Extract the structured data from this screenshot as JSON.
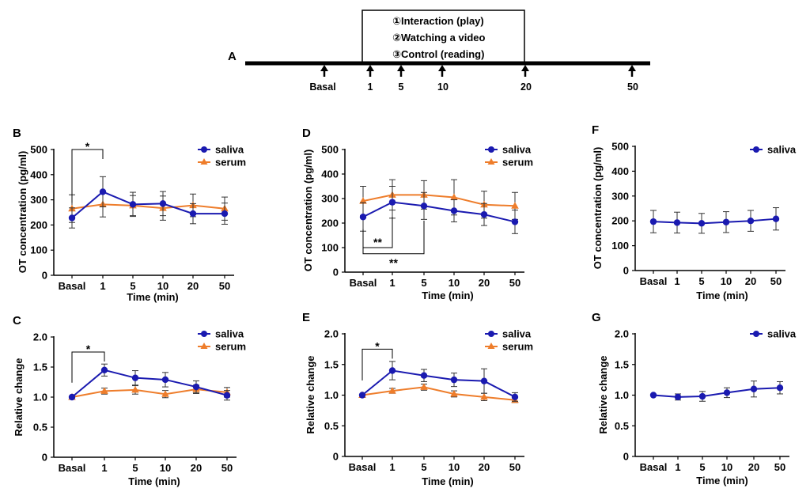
{
  "timeline": {
    "label": "A",
    "conditions": [
      "①Interaction (play)",
      "②Watching a video",
      "③Control (reading)"
    ],
    "markers": [
      "Basal",
      "1",
      "5",
      "10",
      "20",
      "50"
    ]
  },
  "colors": {
    "saliva": "#1a1ab0",
    "serum": "#ee7d2b"
  },
  "chart_data": [
    {
      "id": "B",
      "type": "line",
      "categories": [
        "Basal",
        "1",
        "5",
        "10",
        "20",
        "50"
      ],
      "xlabel": "Time (min)",
      "ylabel": "OT concentration (pg/ml)",
      "ylim": [
        0,
        500
      ],
      "yticks": [
        0,
        100,
        200,
        300,
        400,
        500
      ],
      "series": [
        {
          "name": "saliva",
          "marker": "circle",
          "values": [
            228,
            332,
            282,
            285,
            245,
            245
          ],
          "errors": [
            40,
            60,
            48,
            48,
            40,
            42
          ]
        },
        {
          "name": "serum",
          "marker": "triangle",
          "values": [
            265,
            282,
            277,
            267,
            278,
            265
          ],
          "errors": [
            55,
            50,
            40,
            48,
            45,
            46
          ]
        }
      ],
      "annotations": [
        {
          "text": "*",
          "from": 0,
          "to": 1,
          "level": 500
        }
      ]
    },
    {
      "id": "D",
      "type": "line",
      "categories": [
        "Basal",
        "1",
        "5",
        "10",
        "20",
        "50"
      ],
      "xlabel": "Time (min)",
      "ylabel": "OT concentration (pg/ml)",
      "ylim": [
        0,
        500
      ],
      "yticks": [
        0,
        100,
        200,
        300,
        400,
        500
      ],
      "series": [
        {
          "name": "saliva",
          "marker": "circle",
          "values": [
            225,
            285,
            270,
            250,
            235,
            205
          ],
          "errors": [
            58,
            65,
            55,
            45,
            45,
            48
          ]
        },
        {
          "name": "serum",
          "marker": "triangle",
          "values": [
            290,
            315,
            315,
            305,
            275,
            270
          ],
          "errors": [
            60,
            62,
            58,
            72,
            55,
            55
          ]
        }
      ],
      "annotations": [
        {
          "text": "**",
          "from": 0,
          "to": 1,
          "level": 100
        },
        {
          "text": "**",
          "from": 0,
          "to": 2,
          "level": 75
        }
      ]
    },
    {
      "id": "F",
      "type": "line",
      "categories": [
        "Basal",
        "1",
        "5",
        "10",
        "20",
        "50"
      ],
      "xlabel": "Time (min)",
      "ylabel": "OT concentration (pg/ml)",
      "ylim": [
        0,
        500
      ],
      "yticks": [
        0,
        100,
        200,
        300,
        400,
        500
      ],
      "series": [
        {
          "name": "saliva",
          "marker": "circle",
          "values": [
            197,
            193,
            190,
            195,
            200,
            208
          ],
          "errors": [
            45,
            42,
            40,
            42,
            42,
            45
          ]
        }
      ],
      "annotations": []
    },
    {
      "id": "C",
      "type": "line",
      "categories": [
        "Basal",
        "1",
        "5",
        "10",
        "20",
        "50"
      ],
      "xlabel": "Time (min)",
      "ylabel": "Relative change",
      "ylim": [
        0,
        2.0
      ],
      "yticks": [
        "0",
        "0.5",
        "1.0",
        "1.5",
        "2.0"
      ],
      "series": [
        {
          "name": "saliva",
          "marker": "circle",
          "values": [
            1.0,
            1.45,
            1.32,
            1.29,
            1.17,
            1.03
          ],
          "errors": [
            0,
            0.1,
            0.12,
            0.12,
            0.1,
            0.08
          ]
        },
        {
          "name": "serum",
          "marker": "triangle",
          "values": [
            1.0,
            1.1,
            1.12,
            1.05,
            1.13,
            1.08
          ],
          "errors": [
            0,
            0.05,
            0.07,
            0.06,
            0.07,
            0.08
          ]
        }
      ],
      "annotations": [
        {
          "text": "*",
          "from": 0,
          "to": 1,
          "level": 1.75
        }
      ]
    },
    {
      "id": "E",
      "type": "line",
      "categories": [
        "Basal",
        "1",
        "5",
        "10",
        "20",
        "50"
      ],
      "xlabel": "Time (min)",
      "ylabel": "Relative change",
      "ylim": [
        0,
        2.0
      ],
      "yticks": [
        "0",
        "0.5",
        "1.0",
        "1.5",
        "2.0"
      ],
      "series": [
        {
          "name": "saliva",
          "marker": "circle",
          "values": [
            1.0,
            1.4,
            1.32,
            1.25,
            1.23,
            0.97
          ],
          "errors": [
            0,
            0.15,
            0.1,
            0.11,
            0.2,
            0.07
          ]
        },
        {
          "name": "serum",
          "marker": "triangle",
          "values": [
            1.0,
            1.07,
            1.13,
            1.02,
            0.97,
            0.92
          ],
          "errors": [
            0,
            0.04,
            0.05,
            0.05,
            0.06,
            0.04
          ]
        }
      ],
      "annotations": [
        {
          "text": "*",
          "from": 0,
          "to": 1,
          "level": 1.75
        }
      ]
    },
    {
      "id": "G",
      "type": "line",
      "categories": [
        "Basal",
        "1",
        "5",
        "10",
        "20",
        "50"
      ],
      "xlabel": "Time (min)",
      "ylabel": "Relative change",
      "ylim": [
        0,
        2.0
      ],
      "yticks": [
        "0",
        "0.5",
        "1.0",
        "1.5",
        "2.0"
      ],
      "series": [
        {
          "name": "saliva",
          "marker": "circle",
          "values": [
            1.0,
            0.97,
            0.98,
            1.04,
            1.1,
            1.12
          ],
          "errors": [
            0,
            0.05,
            0.08,
            0.08,
            0.13,
            0.1
          ]
        }
      ],
      "annotations": []
    }
  ]
}
